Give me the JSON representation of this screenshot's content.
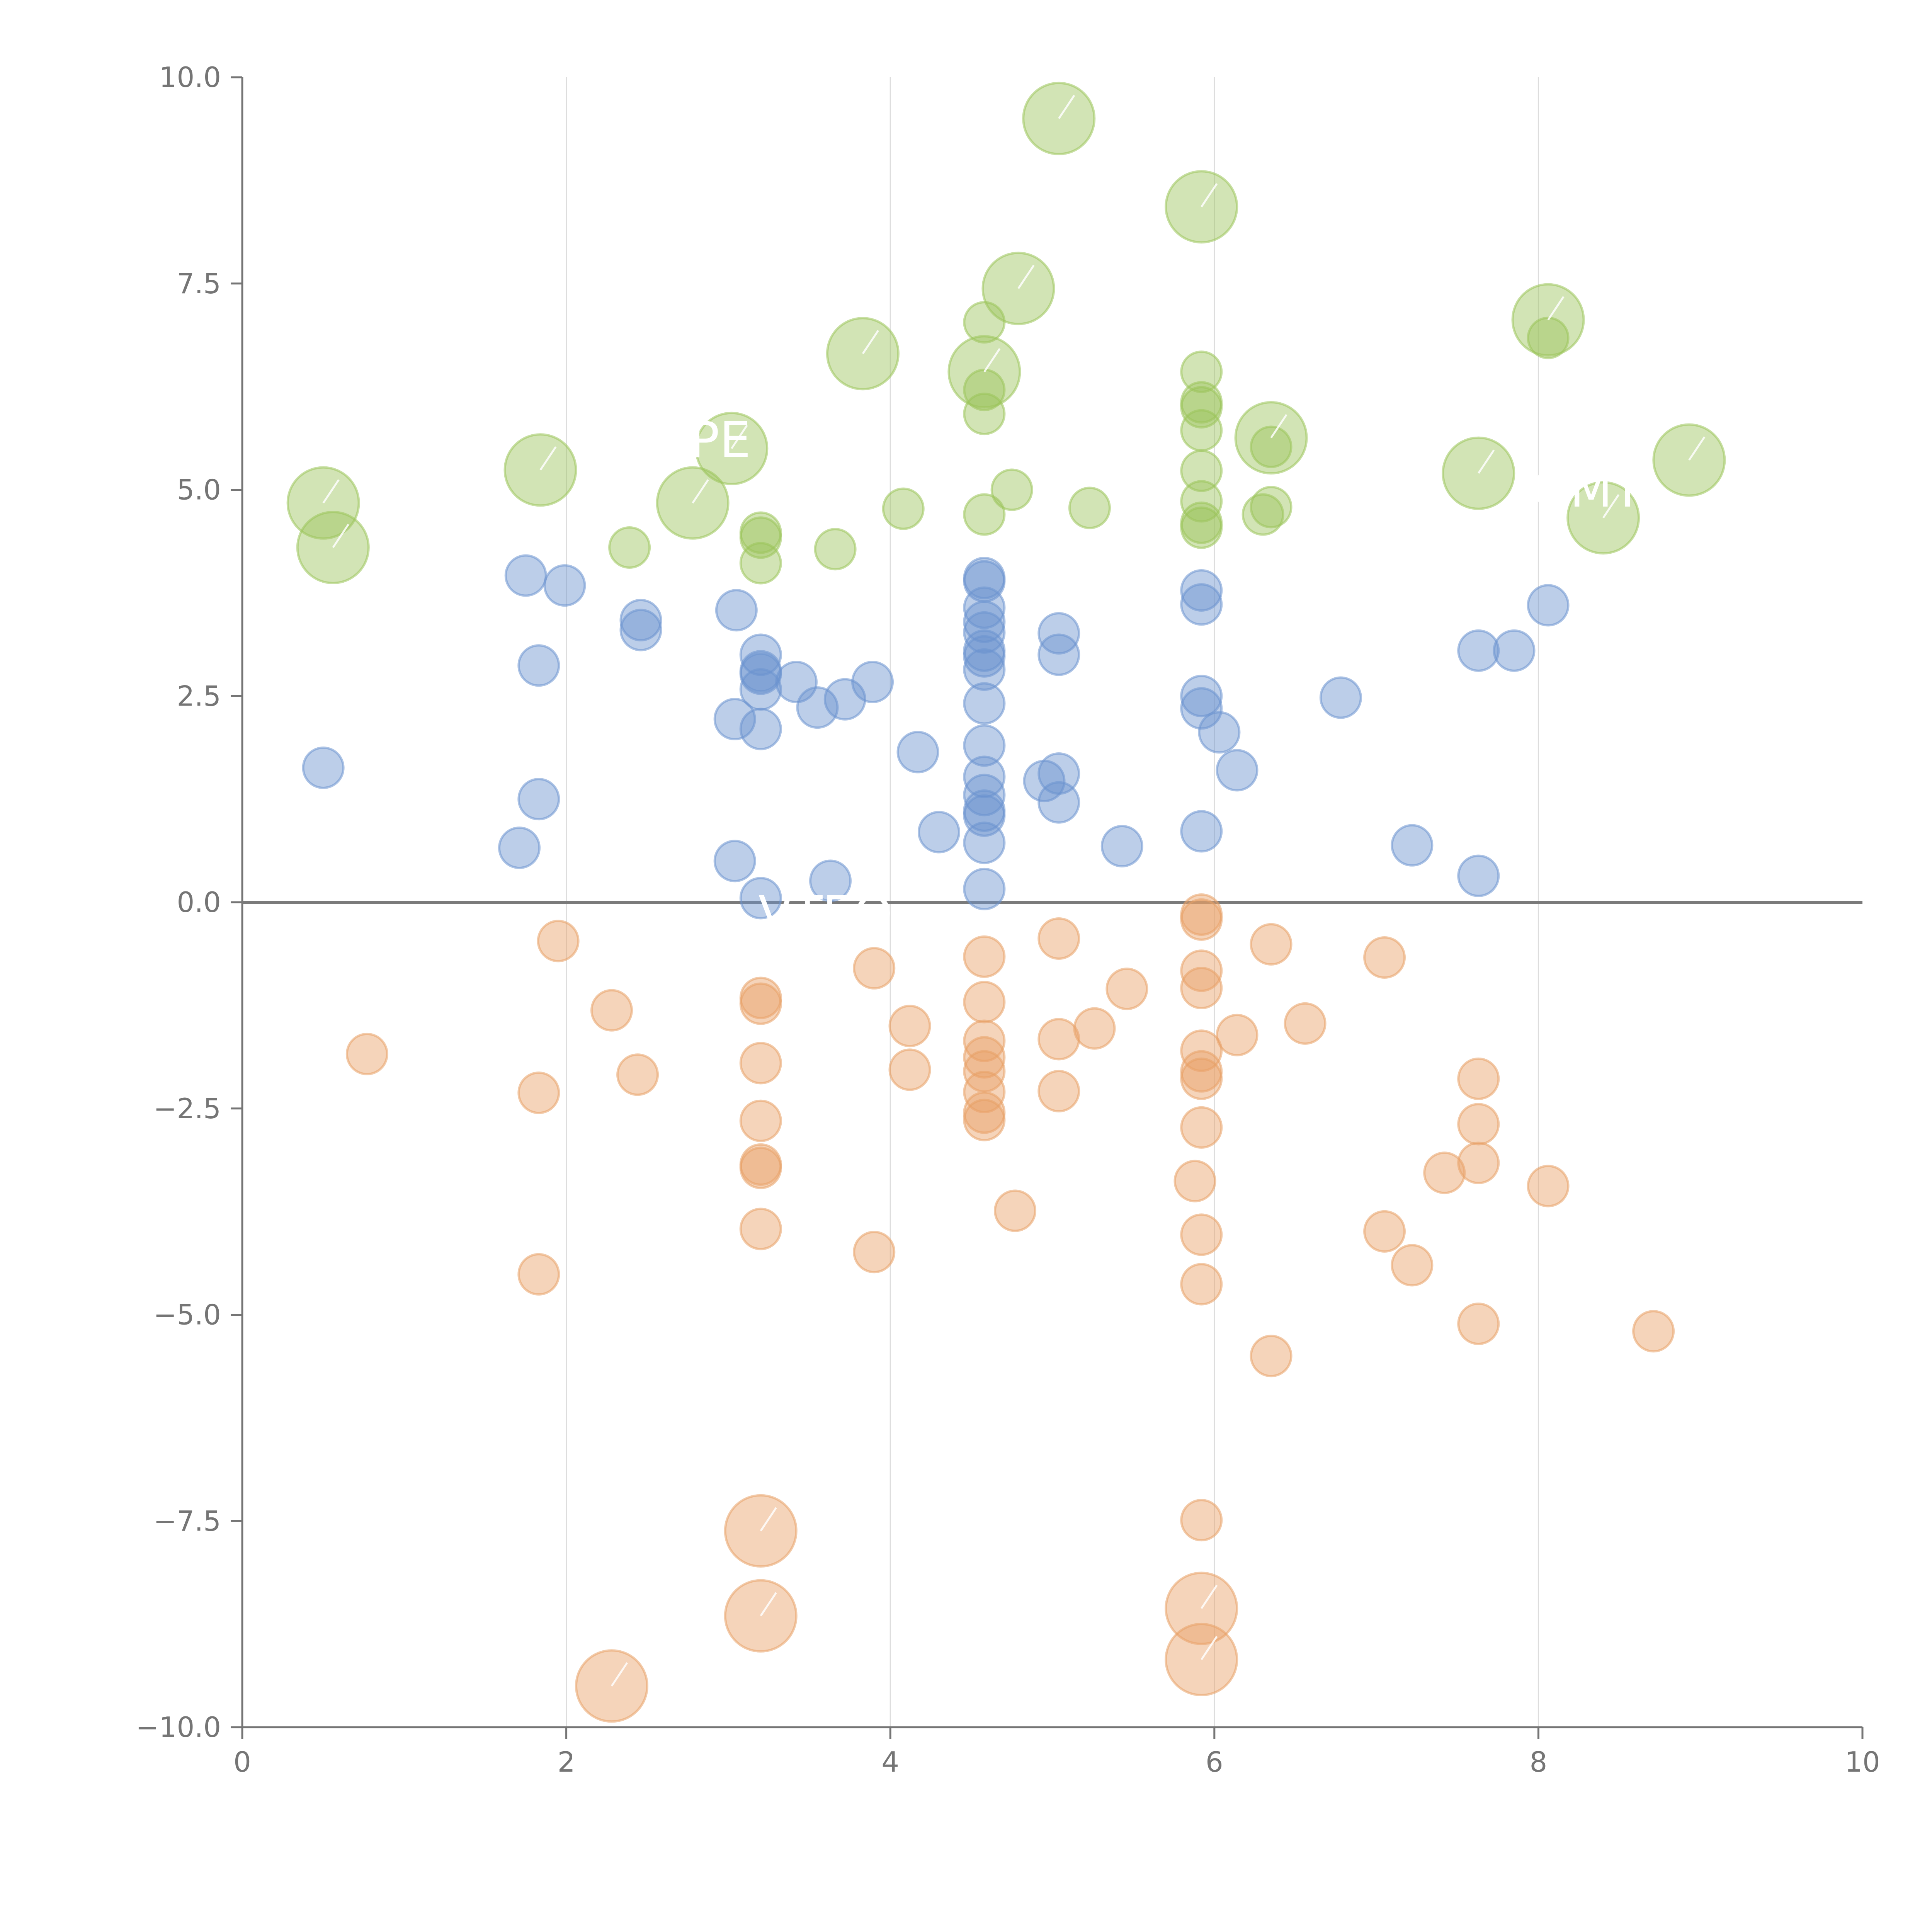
{
  "chart_data": {
    "type": "scatter",
    "title": "",
    "xlabel": "",
    "ylabel": "",
    "xlim": [
      0,
      10
    ],
    "ylim": [
      -10,
      10
    ],
    "x_ticks": [
      0,
      2,
      4,
      6,
      8,
      10
    ],
    "x_tick_labels": [
      "0",
      "2",
      "4",
      "6",
      "8",
      "10"
    ],
    "y_ticks": [
      10,
      7.5,
      5,
      2.5,
      0,
      -2.5,
      -5,
      -7.5,
      -10
    ],
    "y_tick_labels": [
      "10.0",
      "7.5",
      "5.0",
      "2.5",
      "0.0",
      "−2.5",
      "−5.0",
      "−7.5",
      "−10.0"
    ],
    "grid": "vertical",
    "zero_line": true,
    "colors": {
      "green": "#9bc45a",
      "blue": "#6b93cf",
      "orange": "#e8a066",
      "axis": "#757575",
      "grid": "#dddddd",
      "label": "#ffffff"
    },
    "series": [
      {
        "name": "green",
        "color": "#9bc45a",
        "points": [
          [
            5.04,
            9.5,
            3
          ],
          [
            5.92,
            8.43,
            3
          ],
          [
            4.79,
            7.44,
            3
          ],
          [
            3.83,
            6.65,
            3
          ],
          [
            8.06,
            7.06,
            3
          ],
          [
            8.06,
            6.84,
            1
          ],
          [
            4.58,
            7.03,
            1
          ],
          [
            4.58,
            6.43,
            3
          ],
          [
            4.58,
            6.21,
            1
          ],
          [
            4.58,
            5.92,
            1
          ],
          [
            5.92,
            6.43,
            1
          ],
          [
            5.92,
            6.06,
            1
          ],
          [
            5.92,
            6.0,
            1
          ],
          [
            5.92,
            5.72,
            1
          ],
          [
            5.92,
            5.23,
            1
          ],
          [
            5.92,
            4.86,
            1
          ],
          [
            5.92,
            4.6,
            1
          ],
          [
            5.92,
            4.54,
            1
          ],
          [
            6.35,
            5.63,
            3
          ],
          [
            6.35,
            5.52,
            1
          ],
          [
            6.35,
            4.79,
            1
          ],
          [
            6.3,
            4.7,
            1
          ],
          [
            8.93,
            5.36,
            3
          ],
          [
            7.63,
            5.2,
            3
          ],
          [
            8.4,
            4.66,
            3
          ],
          [
            1.84,
            5.24,
            3
          ],
          [
            3.02,
            5.5,
            3
          ],
          [
            0.5,
            4.84,
            3
          ],
          [
            0.56,
            4.3,
            3
          ],
          [
            2.78,
            4.84,
            3
          ],
          [
            2.39,
            4.3,
            1
          ],
          [
            3.2,
            4.48,
            1
          ],
          [
            3.2,
            4.42,
            1
          ],
          [
            3.2,
            4.11,
            1
          ],
          [
            3.66,
            4.28,
            1
          ],
          [
            4.08,
            4.77,
            1
          ],
          [
            4.58,
            4.7,
            1
          ],
          [
            4.75,
            5.0,
            1
          ],
          [
            5.23,
            4.78,
            1
          ]
        ]
      },
      {
        "name": "blue",
        "color": "#6b93cf",
        "points": [
          [
            0.5,
            1.63,
            1
          ],
          [
            1.75,
            3.96,
            1
          ],
          [
            1.99,
            3.84,
            1
          ],
          [
            1.83,
            2.87,
            1
          ],
          [
            1.83,
            1.25,
            1
          ],
          [
            1.71,
            0.66,
            1
          ],
          [
            2.46,
            3.42,
            1
          ],
          [
            2.46,
            3.3,
            1
          ],
          [
            3.05,
            3.54,
            1
          ],
          [
            3.2,
            3.0,
            1
          ],
          [
            3.2,
            2.8,
            1
          ],
          [
            3.2,
            2.77,
            1
          ],
          [
            3.2,
            2.58,
            1
          ],
          [
            3.2,
            2.1,
            1
          ],
          [
            3.04,
            2.22,
            1
          ],
          [
            3.42,
            2.67,
            1
          ],
          [
            3.55,
            2.36,
            1
          ],
          [
            3.72,
            2.46,
            1
          ],
          [
            3.89,
            2.67,
            1
          ],
          [
            3.04,
            0.5,
            1
          ],
          [
            3.2,
            0.05,
            1
          ],
          [
            3.63,
            0.26,
            1
          ],
          [
            4.17,
            1.82,
            1
          ],
          [
            4.3,
            0.85,
            1
          ],
          [
            4.58,
            3.93,
            1
          ],
          [
            4.58,
            3.89,
            1
          ],
          [
            4.58,
            3.57,
            1
          ],
          [
            4.58,
            3.4,
            1
          ],
          [
            4.58,
            3.27,
            1
          ],
          [
            4.58,
            3.05,
            1
          ],
          [
            4.58,
            2.98,
            1
          ],
          [
            4.58,
            2.82,
            1
          ],
          [
            4.58,
            2.41,
            1
          ],
          [
            4.58,
            1.9,
            1
          ],
          [
            4.58,
            1.52,
            1
          ],
          [
            4.58,
            1.3,
            1
          ],
          [
            4.58,
            1.11,
            1
          ],
          [
            4.58,
            1.05,
            1
          ],
          [
            4.58,
            0.72,
            1
          ],
          [
            4.58,
            0.16,
            1
          ],
          [
            5.04,
            3.26,
            1
          ],
          [
            5.04,
            3.0,
            1
          ],
          [
            4.95,
            1.47,
            1
          ],
          [
            5.04,
            1.56,
            1
          ],
          [
            5.04,
            1.21,
            1
          ],
          [
            5.43,
            0.68,
            1
          ],
          [
            5.92,
            3.78,
            1
          ],
          [
            5.92,
            3.61,
            1
          ],
          [
            5.92,
            2.5,
            1
          ],
          [
            5.92,
            2.35,
            1
          ],
          [
            6.03,
            2.06,
            1
          ],
          [
            6.14,
            1.6,
            1
          ],
          [
            5.92,
            0.86,
            1
          ],
          [
            6.78,
            2.48,
            1
          ],
          [
            7.22,
            0.69,
            1
          ],
          [
            7.63,
            3.05,
            1
          ],
          [
            7.85,
            3.05,
            1
          ],
          [
            8.06,
            3.6,
            1
          ],
          [
            7.63,
            0.32,
            1
          ]
        ]
      },
      {
        "name": "orange",
        "color": "#e8a066",
        "points": [
          [
            0.77,
            -1.84,
            1
          ],
          [
            1.95,
            -0.47,
            1
          ],
          [
            2.28,
            -1.31,
            1
          ],
          [
            2.44,
            -2.09,
            1
          ],
          [
            1.83,
            -2.31,
            1
          ],
          [
            1.83,
            -4.51,
            1
          ],
          [
            3.2,
            -1.16,
            1
          ],
          [
            3.2,
            -1.23,
            1
          ],
          [
            3.2,
            -1.95,
            1
          ],
          [
            3.2,
            -2.65,
            1
          ],
          [
            3.2,
            -3.18,
            1
          ],
          [
            3.2,
            -3.22,
            1
          ],
          [
            3.2,
            -3.96,
            1
          ],
          [
            3.2,
            -7.62,
            3
          ],
          [
            3.2,
            -8.65,
            3
          ],
          [
            2.28,
            -9.5,
            3
          ],
          [
            3.9,
            -0.8,
            1
          ],
          [
            4.12,
            -1.5,
            1
          ],
          [
            4.12,
            -2.03,
            1
          ],
          [
            3.9,
            -4.24,
            1
          ],
          [
            4.58,
            -0.66,
            1
          ],
          [
            4.58,
            -1.21,
            1
          ],
          [
            4.58,
            -1.68,
            1
          ],
          [
            4.58,
            -1.88,
            1
          ],
          [
            4.58,
            -2.05,
            1
          ],
          [
            4.58,
            -2.3,
            1
          ],
          [
            4.58,
            -2.55,
            1
          ],
          [
            4.58,
            -2.64,
            1
          ],
          [
            4.77,
            -3.74,
            1
          ],
          [
            5.04,
            -0.44,
            1
          ],
          [
            5.04,
            -1.66,
            1
          ],
          [
            5.04,
            -2.29,
            1
          ],
          [
            5.26,
            -1.53,
            1
          ],
          [
            5.46,
            -1.05,
            1
          ],
          [
            5.92,
            -0.15,
            1
          ],
          [
            5.92,
            -0.21,
            1
          ],
          [
            5.92,
            -0.83,
            1
          ],
          [
            5.92,
            -1.04,
            1
          ],
          [
            5.92,
            -1.8,
            1
          ],
          [
            5.92,
            -2.05,
            1
          ],
          [
            5.92,
            -2.14,
            1
          ],
          [
            5.92,
            -2.73,
            1
          ],
          [
            5.88,
            -3.38,
            1
          ],
          [
            5.92,
            -4.03,
            1
          ],
          [
            5.92,
            -4.63,
            1
          ],
          [
            5.92,
            -7.49,
            1
          ],
          [
            5.92,
            -8.56,
            3
          ],
          [
            5.92,
            -9.18,
            3
          ],
          [
            6.14,
            -1.61,
            1
          ],
          [
            6.35,
            -0.51,
            1
          ],
          [
            6.35,
            -5.5,
            1
          ],
          [
            6.56,
            -1.47,
            1
          ],
          [
            7.05,
            -0.67,
            1
          ],
          [
            7.05,
            -3.99,
            1
          ],
          [
            7.22,
            -4.4,
            1
          ],
          [
            7.42,
            -3.28,
            1
          ],
          [
            7.63,
            -2.14,
            1
          ],
          [
            7.63,
            -2.69,
            1
          ],
          [
            7.63,
            -3.16,
            1
          ],
          [
            7.63,
            -5.11,
            1
          ],
          [
            8.06,
            -3.44,
            1
          ],
          [
            8.71,
            -5.2,
            1
          ]
        ]
      }
    ],
    "labels": [
      {
        "text": "PE",
        "x": 2.95,
        "y": 5.6
      },
      {
        "text": "GMT",
        "x": 8.3,
        "y": 5.0
      },
      {
        "text": "VTEQ",
        "x": 3.6,
        "y": -0.15
      }
    ]
  }
}
